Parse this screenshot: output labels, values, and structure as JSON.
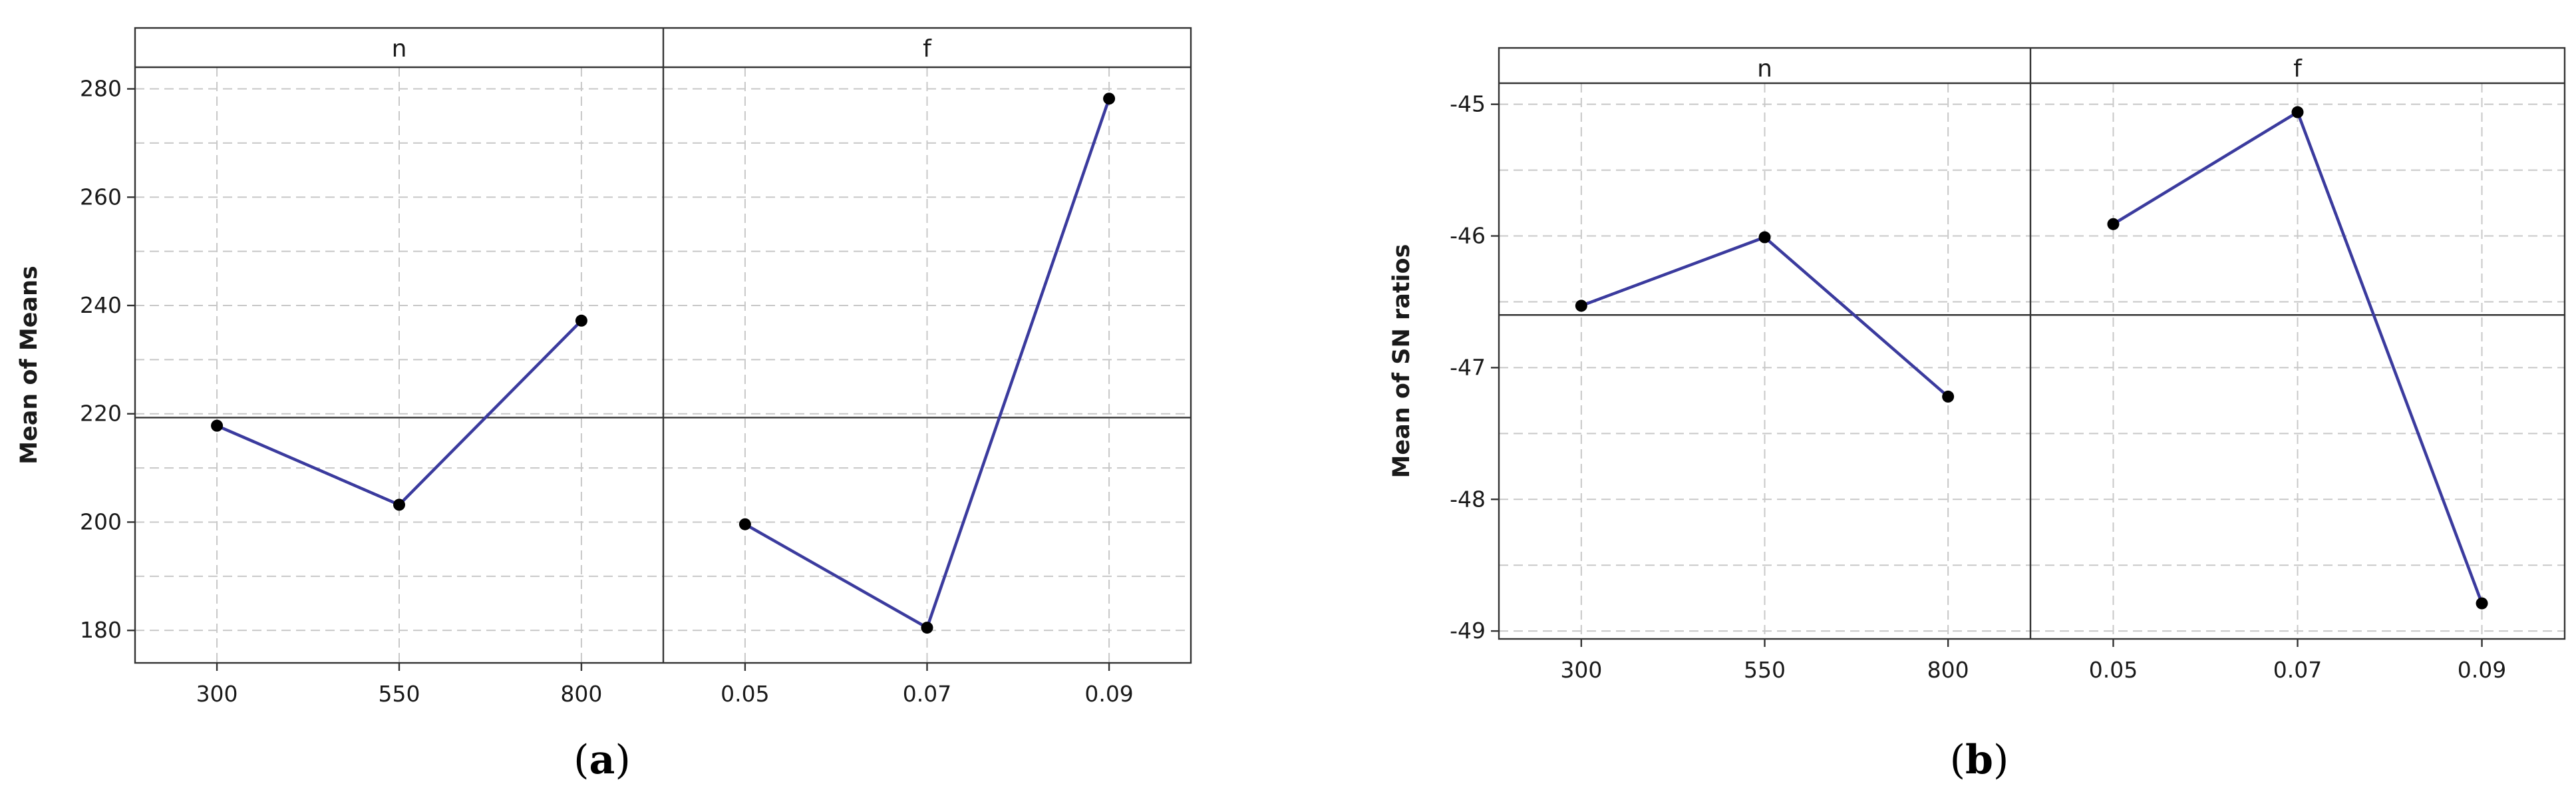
{
  "chart_data": [
    {
      "type": "line",
      "ylabel": "Mean of Means",
      "caption_letter": "a",
      "ylim": [
        174,
        284
      ],
      "yticks": [
        180,
        200,
        220,
        240,
        260,
        280
      ],
      "yminor": [
        190,
        210,
        230,
        250,
        270
      ],
      "ref_y": 219.3,
      "panels": [
        {
          "factor": "n",
          "categories": [
            "300",
            "550",
            "800"
          ],
          "values": [
            217.8,
            203.2,
            237.2
          ]
        },
        {
          "factor": "f",
          "categories": [
            "0.05",
            "0.07",
            "0.09"
          ],
          "values": [
            199.6,
            180.5,
            278.2
          ]
        }
      ],
      "line_color": "#3b3b9e"
    },
    {
      "type": "line",
      "ylabel": "Mean of SN ratios",
      "caption_letter": "b",
      "ylim": [
        -49.06,
        -44.84
      ],
      "yticks": [
        -49,
        -48,
        -47,
        -46,
        -45
      ],
      "yminor": [
        -48.5,
        -47.5,
        -46.5,
        -45.5
      ],
      "ref_y": -46.6,
      "panels": [
        {
          "factor": "n",
          "categories": [
            "300",
            "550",
            "800"
          ],
          "values": [
            -46.53,
            -46.01,
            -47.22
          ]
        },
        {
          "factor": "f",
          "categories": [
            "0.05",
            "0.07",
            "0.09"
          ],
          "values": [
            -45.91,
            -45.06,
            -48.79
          ]
        }
      ],
      "line_color": "#3b3b9e"
    }
  ]
}
